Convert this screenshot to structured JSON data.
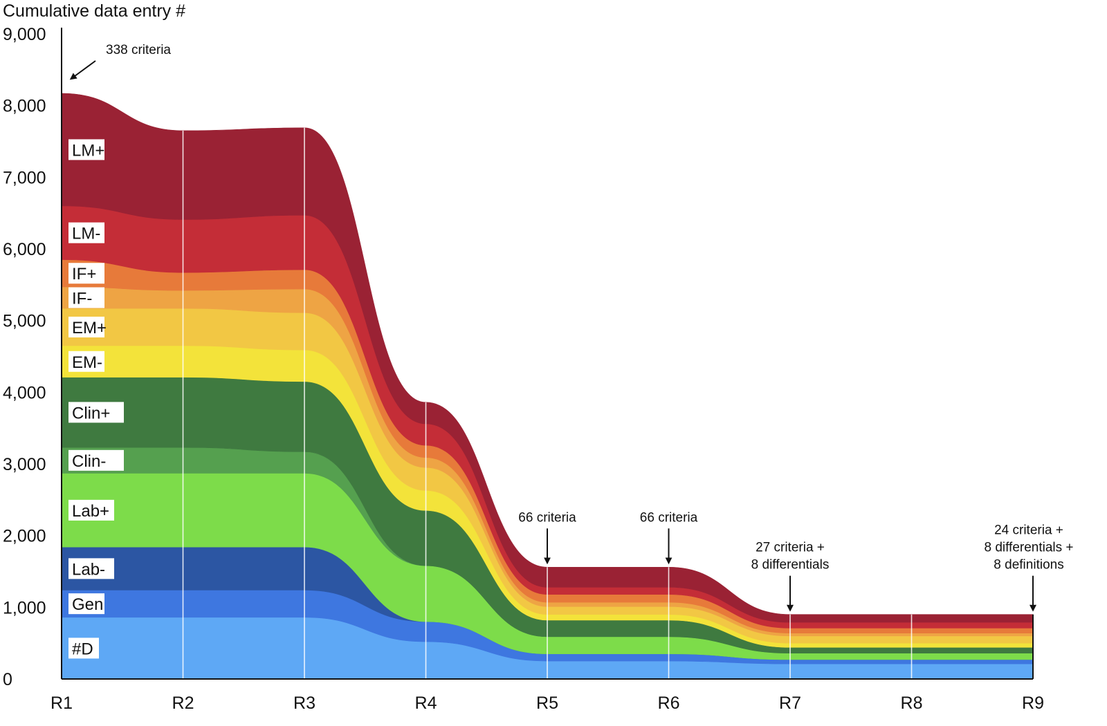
{
  "chart_data": {
    "type": "area",
    "stacked": true,
    "ylabel": "Cumulative data entry #",
    "ylim": [
      0,
      9000
    ],
    "yticks": [
      0,
      1000,
      2000,
      3000,
      4000,
      5000,
      6000,
      7000,
      8000,
      9000
    ],
    "ytick_labels": [
      "0",
      "1,000",
      "2,000",
      "3,000",
      "4,000",
      "5,000",
      "6,000",
      "7,000",
      "8,000",
      "9,000"
    ],
    "categories": [
      "R1",
      "R2",
      "R3",
      "R4",
      "R5",
      "R6",
      "R7",
      "R8",
      "R9"
    ],
    "grid": "vertical",
    "series": [
      {
        "name": "#D",
        "color": "#5ea8f5",
        "values": [
          860,
          860,
          860,
          520,
          250,
          250,
          210,
          210,
          210
        ]
      },
      {
        "name": "Gen",
        "color": "#3e77e0",
        "values": [
          380,
          380,
          380,
          280,
          100,
          100,
          60,
          60,
          60
        ]
      },
      {
        "name": "Lab-",
        "color": "#2c56a3",
        "values": [
          600,
          600,
          600,
          0,
          0,
          0,
          0,
          0,
          0
        ]
      },
      {
        "name": "Lab+",
        "color": "#7ddc4a",
        "values": [
          1030,
          1030,
          1030,
          780,
          240,
          240,
          90,
          90,
          90
        ]
      },
      {
        "name": "Clin-",
        "color": "#55a04f",
        "values": [
          360,
          360,
          300,
          0,
          0,
          0,
          0,
          0,
          0
        ]
      },
      {
        "name": "Clin+",
        "color": "#3f7a40",
        "values": [
          980,
          980,
          980,
          770,
          230,
          230,
          80,
          80,
          80
        ]
      },
      {
        "name": "EM-",
        "color": "#f3e33a",
        "values": [
          440,
          440,
          440,
          280,
          80,
          80,
          60,
          60,
          60
        ]
      },
      {
        "name": "EM+",
        "color": "#f2c744",
        "values": [
          520,
          520,
          520,
          320,
          110,
          110,
          100,
          100,
          100
        ]
      },
      {
        "name": "IF-",
        "color": "#eea444",
        "values": [
          300,
          250,
          330,
          140,
          60,
          60,
          40,
          40,
          40
        ]
      },
      {
        "name": "IF+",
        "color": "#e77a3a",
        "values": [
          380,
          250,
          270,
          170,
          110,
          110,
          70,
          70,
          70
        ]
      },
      {
        "name": "LM-",
        "color": "#c42d37",
        "values": [
          750,
          740,
          760,
          300,
          100,
          100,
          80,
          80,
          80
        ]
      },
      {
        "name": "LM+",
        "color": "#9a2234",
        "values": [
          1570,
          1240,
          1220,
          300,
          280,
          280,
          110,
          110,
          110
        ]
      }
    ],
    "annotations": [
      {
        "text": "338 criteria",
        "x": "R1"
      },
      {
        "text": "66 criteria",
        "x": "R5"
      },
      {
        "text": "66 criteria",
        "x": "R6"
      },
      {
        "text": "27 criteria +\n8 differentials",
        "x": "R7"
      },
      {
        "text": "24 criteria +\n8 differentials +\n8 definitions",
        "x": "R9"
      }
    ]
  }
}
